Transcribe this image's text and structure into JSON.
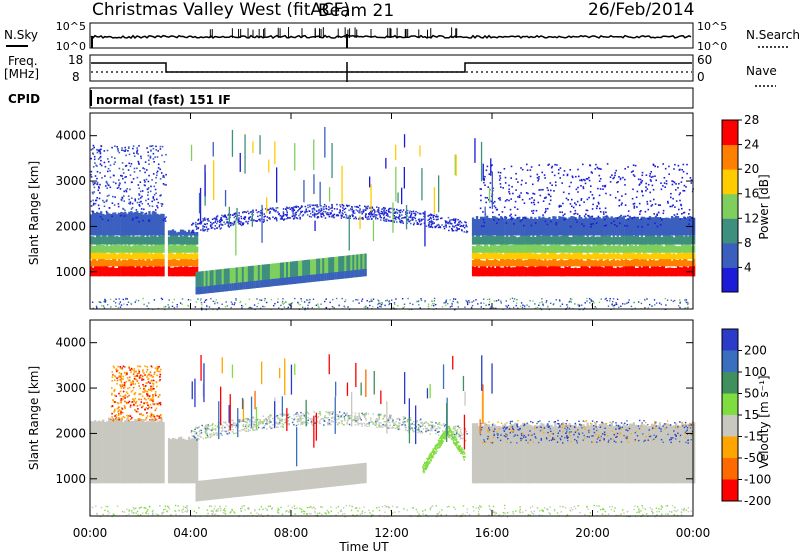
{
  "header": {
    "title": "Christmas Valley West (fitACF)",
    "beam": "Beam 21",
    "date": "26/Feb/2014"
  },
  "strip_panels": {
    "nsky_label": "N.Sky",
    "nsky_ticks": [
      "10^5",
      "10^0"
    ],
    "nsearch_label": "N.Search",
    "nsearch_ticks": [
      "10^5",
      "10^0"
    ],
    "freq_label_1": "Freq.",
    "freq_label_2": "[MHz]",
    "freq_ticks": [
      "18",
      "8"
    ],
    "nave_label": "Nave",
    "nave_ticks": [
      "60",
      "0"
    ],
    "cpid_label": "CPID",
    "cpid_text": "normal (fast) 151 IF"
  },
  "chart_data": [
    {
      "type": "heatmap",
      "name": "power",
      "ylabel": "Slant Range [km]",
      "ylim": [
        180,
        4500
      ],
      "yticks": [
        "1000",
        "2000",
        "3000",
        "4000"
      ],
      "xlim": [
        "00:00",
        "24:00"
      ],
      "colorbar_label": "Power [dB]",
      "colorbar_ticks": [
        "4",
        "8",
        "12",
        "16",
        "20",
        "24",
        "28"
      ],
      "colors": [
        "#1c1cd8",
        "#3a5fbf",
        "#3f8f7f",
        "#7fcf5f",
        "#ffcc00",
        "#ff7f00",
        "#ff0000"
      ],
      "grid": false
    },
    {
      "type": "heatmap",
      "name": "velocity",
      "ylabel": "Slant Range [km]",
      "ylim": [
        180,
        4500
      ],
      "yticks": [
        "1000",
        "2000",
        "3000",
        "4000"
      ],
      "xlabel": "Time UT",
      "xticks": [
        "00:00",
        "04:00",
        "08:00",
        "12:00",
        "16:00",
        "20:00",
        "00:00"
      ],
      "colorbar_label": "Velocity [m s⁻¹]",
      "colorbar_ticks": [
        "200",
        "100",
        "50",
        "15",
        "-15",
        "-50",
        "-100",
        "-200"
      ],
      "colors": [
        "#2a3cc8",
        "#3a6fbf",
        "#3f8f5f",
        "#7fdd3f",
        "#c8c8c0",
        "#ffa500",
        "#ff6a00",
        "#ff0000"
      ],
      "grid": false
    }
  ]
}
